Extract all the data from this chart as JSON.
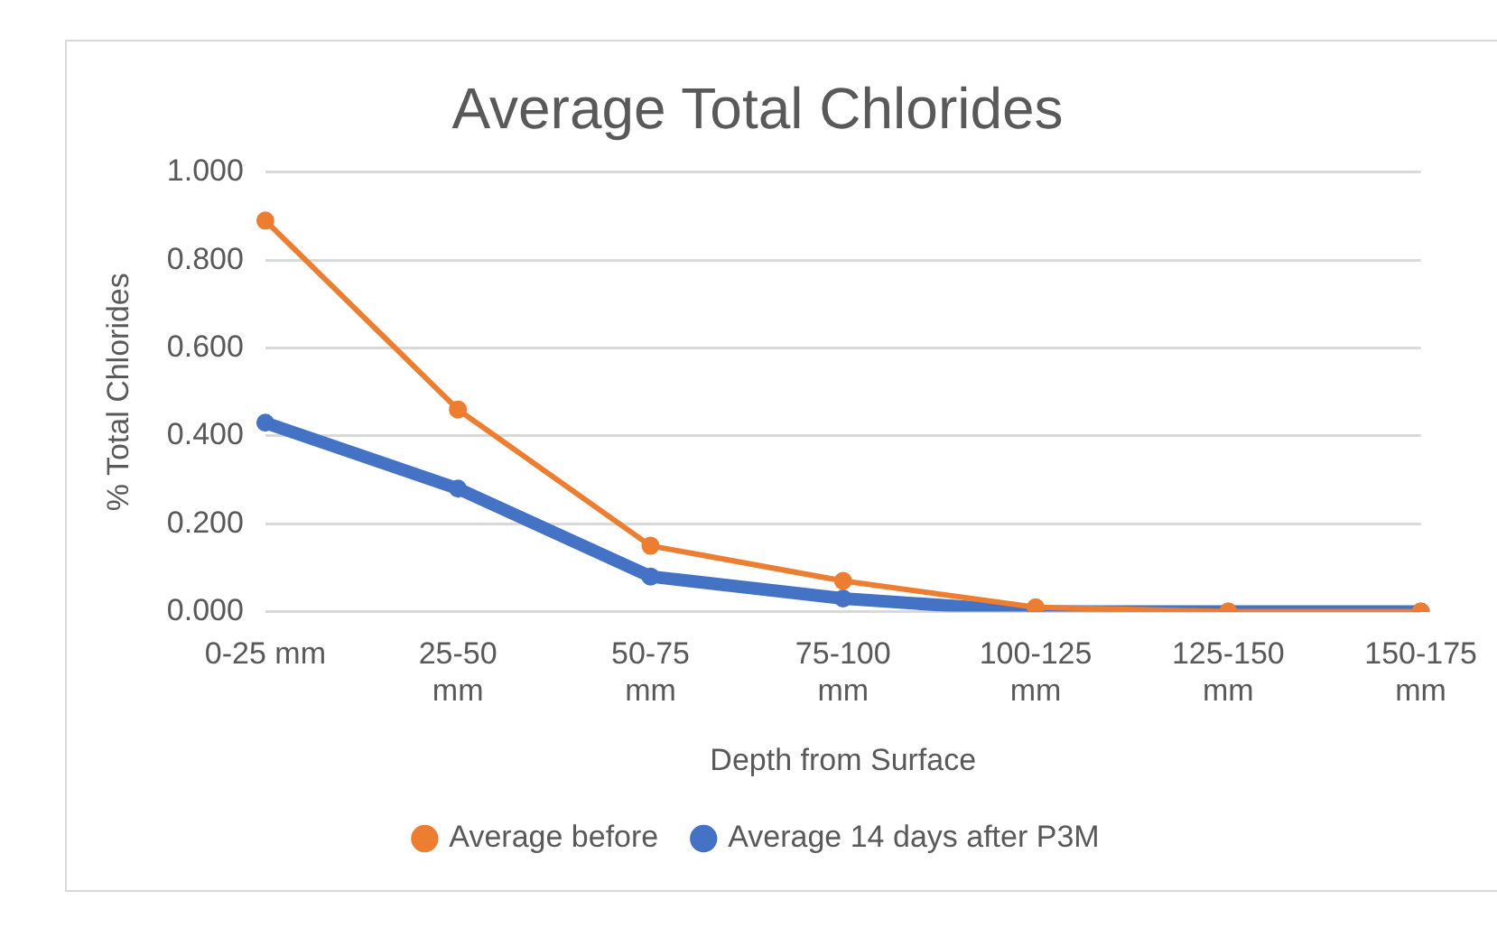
{
  "chart_data": {
    "type": "line",
    "title": "Average Total Chlorides",
    "xlabel": "Depth from Surface",
    "ylabel": "% Total Chlorides",
    "categories": [
      "0-25 mm",
      "25-50 mm",
      "50-75 mm",
      "75-100 mm",
      "100-125 mm",
      "125-150 mm",
      "150-175 mm"
    ],
    "series": [
      {
        "name": "Average before",
        "color": "#ed7d31",
        "values": [
          0.89,
          0.46,
          0.15,
          0.07,
          0.01,
          0,
          0
        ]
      },
      {
        "name": "Average 14 days after P3M",
        "color": "#4472c4",
        "values": [
          0.43,
          0.28,
          0.08,
          0.03,
          0,
          0,
          0
        ]
      }
    ],
    "ylim": [
      0,
      1
    ],
    "yticks": [
      {
        "value": 0,
        "label": "0.000"
      },
      {
        "value": 0.2,
        "label": "0.200"
      },
      {
        "value": 0.4,
        "label": "0.400"
      },
      {
        "value": 0.6,
        "label": "0.600"
      },
      {
        "value": 0.8,
        "label": "0.800"
      },
      {
        "value": 1,
        "label": "1.000"
      }
    ],
    "grid": "y",
    "legend": "bottom",
    "marker": "circle",
    "line_style": "solid"
  }
}
